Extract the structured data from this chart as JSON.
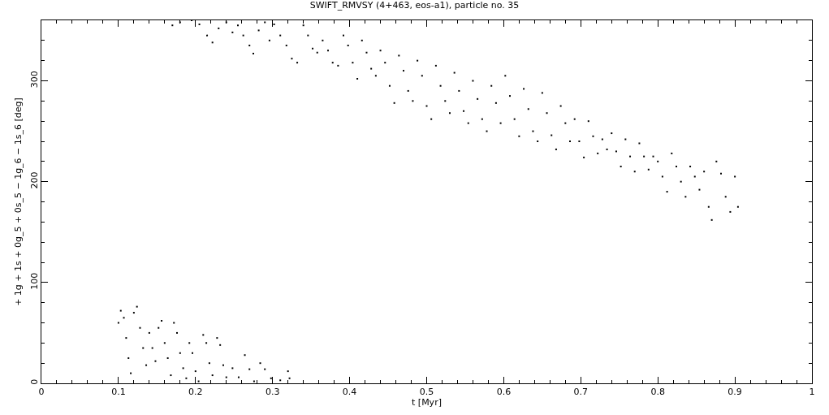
{
  "chart_data": {
    "type": "scatter",
    "title": "SWIFT_RMVSY (4+463, eos-a1), particle no. 35",
    "xlabel": "t [Myr]",
    "ylabel": "+ 1g + 1s + 0g_5 + 0s_5 − 1g_6 − 1s_6 [deg]",
    "xlim": [
      0,
      1
    ],
    "xticks": [
      0,
      0.1,
      0.2,
      0.3,
      0.4,
      0.5,
      0.6,
      0.7,
      0.8,
      0.9,
      1
    ],
    "ylim": [
      0,
      360
    ],
    "yticks": [
      0,
      100,
      200,
      300
    ],
    "marker": "square",
    "series": [
      {
        "color": "#000000",
        "x": [
          0.17,
          0.18,
          0.195,
          0.205,
          0.215,
          0.222,
          0.23,
          0.24,
          0.248,
          0.255,
          0.262,
          0.27,
          0.275,
          0.282,
          0.29,
          0.296,
          0.302,
          0.31,
          0.318,
          0.325,
          0.332,
          0.34,
          0.346,
          0.352,
          0.358,
          0.365,
          0.372,
          0.378,
          0.385,
          0.392,
          0.398,
          0.404,
          0.41,
          0.416,
          0.422,
          0.428,
          0.434,
          0.44,
          0.446,
          0.452,
          0.458,
          0.464,
          0.47,
          0.476,
          0.482,
          0.488,
          0.494,
          0.5,
          0.506,
          0.512,
          0.518,
          0.524,
          0.53,
          0.536,
          0.542,
          0.548,
          0.554,
          0.56,
          0.566,
          0.572,
          0.578,
          0.584,
          0.59,
          0.596,
          0.602,
          0.608,
          0.614,
          0.62,
          0.626,
          0.632,
          0.638,
          0.644,
          0.65,
          0.656,
          0.662,
          0.668,
          0.674,
          0.68,
          0.686,
          0.692,
          0.698,
          0.704,
          0.71,
          0.716,
          0.722,
          0.728,
          0.734,
          0.74,
          0.746,
          0.752,
          0.758,
          0.764,
          0.77,
          0.776,
          0.782,
          0.788,
          0.794,
          0.8,
          0.806,
          0.812,
          0.818,
          0.824,
          0.83,
          0.836,
          0.842,
          0.848,
          0.854,
          0.86,
          0.866,
          0.87,
          0.876,
          0.882,
          0.888,
          0.894,
          0.9,
          0.904
        ],
        "values": [
          355,
          358,
          360,
          356,
          345,
          338,
          352,
          358,
          348,
          355,
          345,
          335,
          327,
          350,
          358,
          340,
          356,
          345,
          335,
          322,
          318,
          355,
          345,
          332,
          328,
          340,
          330,
          318,
          315,
          345,
          335,
          318,
          302,
          340,
          328,
          312,
          305,
          330,
          318,
          295,
          278,
          325,
          310,
          290,
          280,
          320,
          305,
          275,
          262,
          315,
          295,
          280,
          268,
          308,
          290,
          270,
          258,
          300,
          282,
          262,
          250,
          295,
          278,
          258,
          305,
          285,
          262,
          245,
          292,
          272,
          250,
          240,
          288,
          268,
          246,
          232,
          275,
          258,
          240,
          262,
          240,
          224,
          260,
          245,
          228,
          242,
          232,
          248,
          230,
          215,
          242,
          225,
          210,
          238,
          225,
          212,
          225,
          220,
          205,
          190,
          228,
          215,
          200,
          185,
          215,
          205,
          192,
          210,
          175,
          162,
          220,
          208,
          185,
          170,
          205,
          175
        ]
      },
      {
        "color": "#000000",
        "x": [
          0.1,
          0.103,
          0.107,
          0.11,
          0.113,
          0.116,
          0.12,
          0.124,
          0.128,
          0.132,
          0.136,
          0.14,
          0.144,
          0.148,
          0.152,
          0.156,
          0.16,
          0.164,
          0.168,
          0.172,
          0.176,
          0.18,
          0.184,
          0.188,
          0.192,
          0.196,
          0.2,
          0.204,
          0.21,
          0.214,
          0.218,
          0.222,
          0.228,
          0.232,
          0.236,
          0.24,
          0.248,
          0.256,
          0.264,
          0.27,
          0.276,
          0.284,
          0.29,
          0.298,
          0.31,
          0.32,
          0.322
        ],
        "values": [
          60,
          72,
          65,
          45,
          25,
          10,
          70,
          76,
          55,
          35,
          18,
          50,
          35,
          22,
          55,
          62,
          40,
          25,
          8,
          60,
          50,
          30,
          15,
          5,
          40,
          30,
          12,
          2,
          48,
          40,
          20,
          8,
          45,
          38,
          18,
          6,
          15,
          6,
          28,
          14,
          2,
          20,
          14,
          5,
          3,
          12,
          5
        ]
      }
    ]
  }
}
